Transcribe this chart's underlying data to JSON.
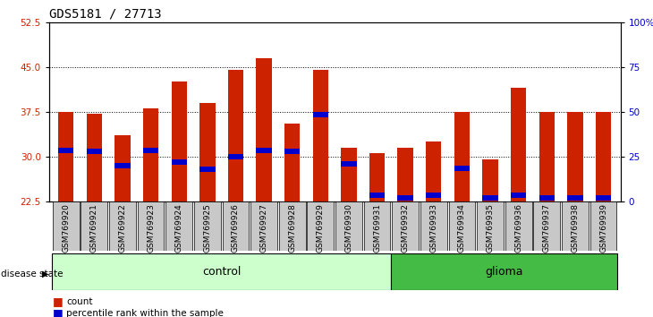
{
  "title": "GDS5181 / 27713",
  "samples": [
    "GSM769920",
    "GSM769921",
    "GSM769922",
    "GSM769923",
    "GSM769924",
    "GSM769925",
    "GSM769926",
    "GSM769927",
    "GSM769928",
    "GSM769929",
    "GSM769930",
    "GSM769931",
    "GSM769932",
    "GSM769933",
    "GSM769934",
    "GSM769935",
    "GSM769936",
    "GSM769937",
    "GSM769938",
    "GSM769939"
  ],
  "bar_heights": [
    37.5,
    37.2,
    33.5,
    38.0,
    42.5,
    39.0,
    44.5,
    46.5,
    35.5,
    44.5,
    31.5,
    30.5,
    31.5,
    32.5,
    37.5,
    29.5,
    41.5,
    37.5,
    37.5,
    37.5
  ],
  "blue_positions": [
    31.0,
    30.8,
    28.5,
    31.0,
    29.0,
    27.8,
    30.0,
    31.0,
    30.8,
    37.0,
    28.8,
    23.5,
    23.0,
    23.5,
    28.0,
    23.0,
    23.5,
    23.0,
    23.0,
    23.0
  ],
  "control_count": 12,
  "glioma_count": 8,
  "ylim_left": [
    22.5,
    52.5
  ],
  "yticks_left": [
    22.5,
    30,
    37.5,
    45,
    52.5
  ],
  "yticks_right": [
    0,
    25,
    50,
    75,
    100
  ],
  "bar_color": "#CC2200",
  "blue_color": "#0000CC",
  "control_bg": "#CCFFCC",
  "glioma_bg": "#44BB44",
  "axis_label_color_left": "#CC2200",
  "axis_label_color_right": "#0000CC",
  "legend_count_label": "count",
  "legend_pct_label": "percentile rank within the sample",
  "disease_state_label": "disease state",
  "control_label": "control",
  "glioma_label": "glioma",
  "title_fontsize": 10,
  "tick_fontsize": 7.5,
  "bar_width": 0.55
}
